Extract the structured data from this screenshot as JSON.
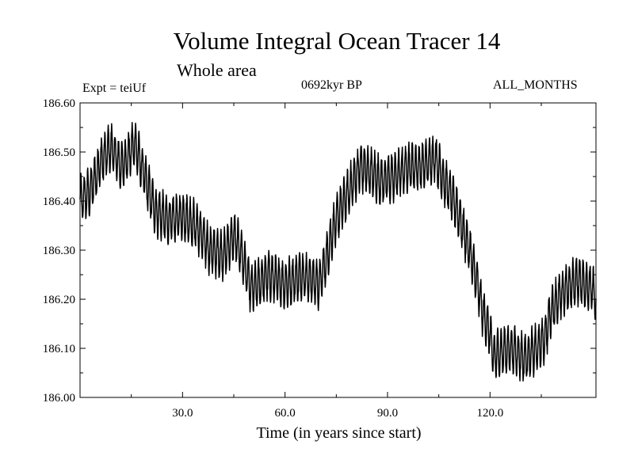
{
  "chart_data": {
    "type": "line",
    "title": "Volume Integral Ocean Tracer 14",
    "subtitle": "Whole area",
    "experiment_label": "Expt = teiUf",
    "period_label": "0692kyr BP",
    "months_label": "ALL_MONTHS",
    "xlabel": "Time (in years since start)",
    "ylabel": "",
    "xlim": [
      0,
      151
    ],
    "ylim": [
      186.0,
      186.6
    ],
    "x_ticks": [
      30,
      60,
      90,
      120
    ],
    "x_tick_labels": [
      "30.0",
      "60.0",
      "90.0",
      "120.0"
    ],
    "y_ticks": [
      186.0,
      186.1,
      186.2,
      186.3,
      186.4,
      186.5,
      186.6
    ],
    "y_tick_labels": [
      "186.00",
      "186.10",
      "186.20",
      "186.30",
      "186.40",
      "186.50",
      "186.60"
    ],
    "grid": false,
    "line_color": "#000000",
    "seasonal_amplitude": 0.045,
    "series": [
      {
        "name": "Volume Integral Ocean Tracer 14",
        "trend_x": [
          0,
          3,
          6,
          9,
          12,
          14,
          16,
          18,
          22,
          26,
          30,
          34,
          38,
          42,
          45,
          47,
          50,
          52,
          55,
          60,
          65,
          68,
          70,
          72,
          74,
          76,
          78,
          80,
          82,
          85,
          88,
          92,
          96,
          100,
          104,
          106,
          110,
          114,
          116,
          118,
          120,
          121,
          122,
          126,
          130,
          134,
          136,
          138,
          142,
          146,
          150,
          151
        ],
        "trend_y": [
          186.4,
          186.42,
          186.48,
          186.51,
          186.47,
          186.49,
          186.52,
          186.47,
          186.38,
          186.36,
          186.37,
          186.35,
          186.3,
          186.29,
          186.33,
          186.3,
          186.22,
          186.23,
          186.25,
          186.23,
          186.25,
          186.24,
          186.23,
          186.28,
          186.34,
          186.38,
          186.41,
          186.44,
          186.47,
          186.46,
          186.44,
          186.45,
          186.47,
          186.47,
          186.49,
          186.45,
          186.39,
          186.3,
          186.24,
          186.17,
          186.13,
          186.08,
          186.09,
          186.1,
          186.08,
          186.1,
          186.12,
          186.18,
          186.22,
          186.24,
          186.22,
          186.2
        ]
      }
    ]
  }
}
